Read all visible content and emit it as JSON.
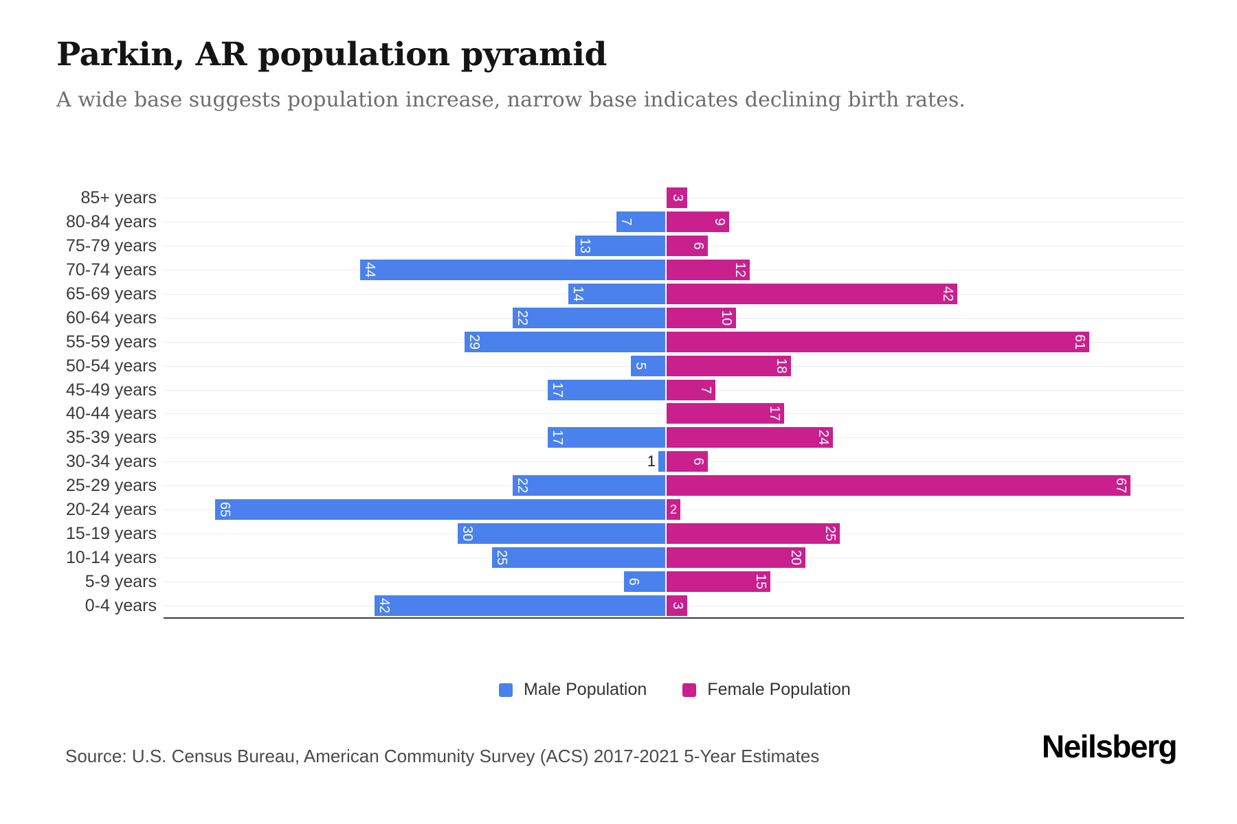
{
  "header": {
    "title": "Parkin, AR population pyramid",
    "subtitle": "A wide base suggests population increase, narrow base indicates declining birth rates."
  },
  "chart_data": {
    "type": "bar",
    "variant": "population_pyramid",
    "title": "Parkin, AR population pyramid",
    "categories": [
      "85+ years",
      "80-84 years",
      "75-79 years",
      "70-74 years",
      "65-69 years",
      "60-64 years",
      "55-59 years",
      "50-54 years",
      "45-49 years",
      "40-44 years",
      "35-39 years",
      "30-34 years",
      "25-29 years",
      "20-24 years",
      "15-19 years",
      "10-14 years",
      "5-9 years",
      "0-4 years"
    ],
    "series": [
      {
        "name": "Male Population",
        "side": "left",
        "color": "#4a81ec",
        "values": [
          0,
          7,
          13,
          44,
          14,
          22,
          29,
          5,
          17,
          0,
          17,
          1,
          22,
          65,
          30,
          25,
          6,
          42
        ]
      },
      {
        "name": "Female Population",
        "side": "right",
        "color": "#c9208e",
        "values": [
          3,
          9,
          6,
          12,
          42,
          10,
          61,
          18,
          7,
          17,
          24,
          6,
          67,
          2,
          25,
          20,
          15,
          3
        ]
      }
    ],
    "value_axis": {
      "min": 0,
      "max_shown": 67,
      "ticks_visible": false
    },
    "grid": "horizontal line per category row",
    "legend_position": "bottom-center",
    "bar_labels": "values shown rotated inside bar ends; tiny bars labeled outside in black or upright inside"
  },
  "legend": {
    "items": [
      {
        "label": "Male Population",
        "color": "#4a81ec"
      },
      {
        "label": "Female Population",
        "color": "#c9208e"
      }
    ]
  },
  "footer": {
    "source": "Source: U.S. Census Bureau, American Community Survey (ACS) 2017-2021 5-Year Estimates",
    "brand": "Neilsberg"
  }
}
